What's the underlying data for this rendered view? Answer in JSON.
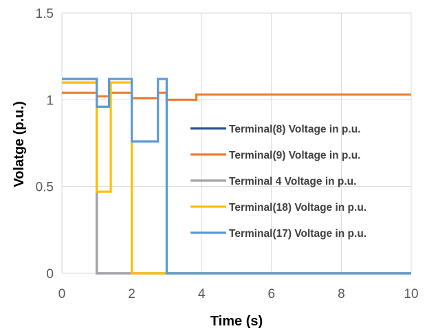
{
  "chart_data": {
    "type": "line",
    "title": "",
    "xlabel": "Time (s)",
    "ylabel": "Volatge (p.u.)",
    "xlim": [
      0,
      10
    ],
    "ylim": [
      0,
      1.5
    ],
    "x_ticks": [
      "0",
      "2",
      "4",
      "6",
      "8",
      "10"
    ],
    "y_ticks": [
      "0",
      "0.5",
      "1",
      "1.5"
    ],
    "grid": "vertical",
    "legend_position": "center-right",
    "series": [
      {
        "name": "Terminal(8) Voltage in p.u.",
        "color": "#2F5597",
        "x": [
          0,
          1,
          1,
          10
        ],
        "y": [
          1.12,
          1.12,
          0,
          0
        ]
      },
      {
        "name": "Terminal(9) Voltage in p.u.",
        "color": "#ED7D31",
        "x": [
          0,
          1,
          1,
          1.35,
          1.35,
          2,
          2,
          2.75,
          2.75,
          3,
          3,
          3.85,
          3.85,
          10
        ],
        "y": [
          1.04,
          1.04,
          1.02,
          1.02,
          1.04,
          1.04,
          1.01,
          1.01,
          1.04,
          1.04,
          1.0,
          1.0,
          1.03,
          1.03
        ]
      },
      {
        "name": "Terminal 4 Voltage in p.u.",
        "color": "#A5A5A5",
        "x": [
          0,
          1,
          1,
          10
        ],
        "y": [
          1.1,
          1.1,
          0,
          0
        ]
      },
      {
        "name": "Terminal(18) Voltage in p.u.",
        "color": "#FFC000",
        "x": [
          0,
          1,
          1,
          1.4,
          1.4,
          2,
          2,
          3,
          3,
          10
        ],
        "y": [
          1.1,
          1.1,
          0.47,
          0.47,
          1.1,
          1.1,
          0,
          0,
          0,
          0
        ]
      },
      {
        "name": "Terminal(17) Voltage in p.u.",
        "color": "#5B9BD5",
        "x": [
          0,
          1,
          1,
          1.35,
          1.35,
          2,
          2,
          2.75,
          2.75,
          3,
          3,
          10
        ],
        "y": [
          1.12,
          1.12,
          0.96,
          0.96,
          1.12,
          1.12,
          0.76,
          0.76,
          1.12,
          1.12,
          0,
          0
        ]
      }
    ]
  }
}
